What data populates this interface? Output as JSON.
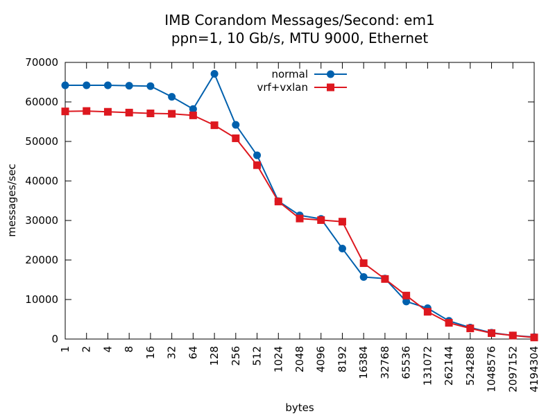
{
  "chart_data": {
    "type": "line",
    "title": "IMB Corandom Messages/Second: em1",
    "subtitle": "ppn=1, 10 Gb/s, MTU 9000, Ethernet",
    "xlabel": "bytes",
    "ylabel": "messages/sec",
    "ylim": [
      0,
      70000
    ],
    "yticks": [
      "0",
      "10000",
      "20000",
      "30000",
      "40000",
      "50000",
      "60000",
      "70000"
    ],
    "categories": [
      "1",
      "2",
      "4",
      "8",
      "16",
      "32",
      "64",
      "128",
      "256",
      "512",
      "1024",
      "2048",
      "4096",
      "8192",
      "16384",
      "32768",
      "65536",
      "131072",
      "262144",
      "524288",
      "1048576",
      "2097152",
      "4194304"
    ],
    "grid": false,
    "legend_position": "top-center",
    "series": [
      {
        "name": "normal",
        "color": "#0060ad",
        "marker": "circle",
        "values": [
          64200,
          64200,
          64200,
          64100,
          64000,
          61300,
          58200,
          67100,
          54200,
          46500,
          34900,
          31300,
          30400,
          22900,
          15700,
          15300,
          9500,
          7800,
          4600,
          2900,
          1600,
          900,
          500
        ]
      },
      {
        "name": "vrf+vxlan",
        "color": "#dd181f",
        "marker": "square",
        "values": [
          57600,
          57700,
          57500,
          57300,
          57100,
          57000,
          56600,
          54100,
          50800,
          44000,
          34800,
          30500,
          30100,
          29700,
          19200,
          15200,
          11000,
          6900,
          4100,
          2700,
          1500,
          900,
          400
        ]
      }
    ]
  }
}
